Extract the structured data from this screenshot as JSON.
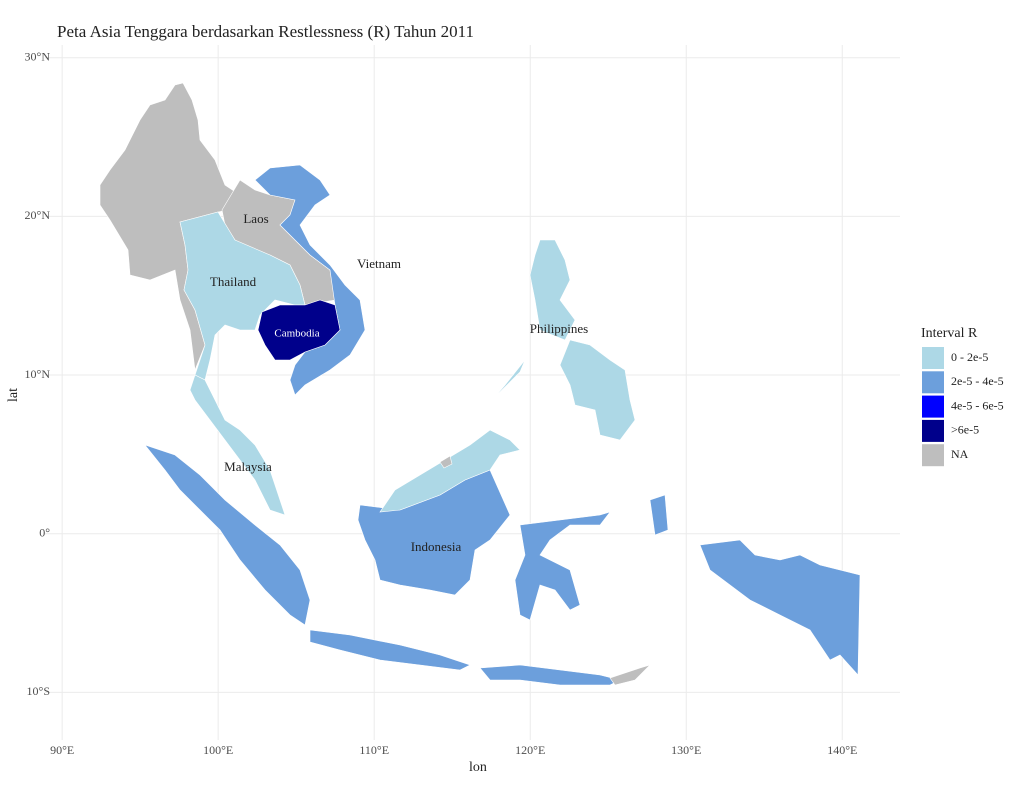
{
  "chart_data": {
    "type": "map",
    "title": "Peta Asia Tenggara berdasarkan Restlessness (R) Tahun 2011",
    "x_label": "lon",
    "y_label": "lat",
    "xlim": [
      88.9,
      143.7
    ],
    "ylim": [
      -13,
      30.8
    ],
    "xticks": [
      {
        "value": 90,
        "label": "90°E"
      },
      {
        "value": 100,
        "label": "100°E"
      },
      {
        "value": 110,
        "label": "110°E"
      },
      {
        "value": 120,
        "label": "120°E"
      },
      {
        "value": 130,
        "label": "130°E"
      },
      {
        "value": 140,
        "label": "140°E"
      }
    ],
    "yticks": [
      {
        "value": 30,
        "label": "30°N"
      },
      {
        "value": 20,
        "label": "20°N"
      },
      {
        "value": 10,
        "label": "10°N"
      },
      {
        "value": 0,
        "label": "0°"
      },
      {
        "value": -10,
        "label": "10°S"
      }
    ],
    "grid": true,
    "legend_title": "Interval R",
    "legend": [
      {
        "label": "0 - 2e-5",
        "color": "#add8e6"
      },
      {
        "label": "2e-5 - 4e-5",
        "color": "#6c9fdc"
      },
      {
        "label": "4e-5 - 6e-5",
        "color": "#0000ff"
      },
      {
        "label": ">6e-5",
        "color": "#00008b"
      },
      {
        "label": "NA",
        "color": "#bebebe"
      }
    ],
    "region_labels": [
      "Laos",
      "Vietnam",
      "Thailand",
      "Cambodia",
      "Philippines",
      "Malaysia",
      "Indonesia"
    ]
  }
}
